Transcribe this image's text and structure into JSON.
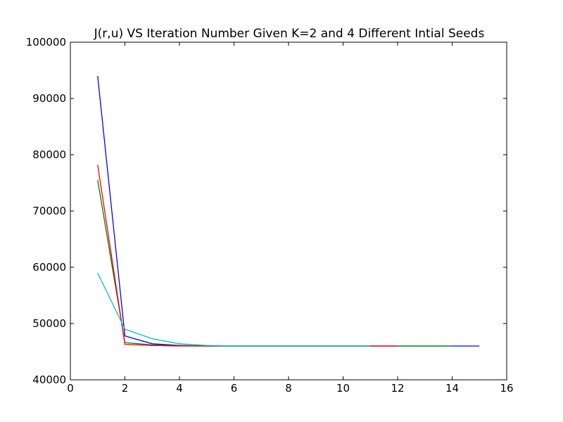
{
  "chart_data": {
    "type": "line",
    "title": "J(r,u) VS Iteration Number Given K=2 and 4 Different Intial Seeds",
    "xlabel": "",
    "ylabel": "",
    "xlim": [
      0,
      16
    ],
    "ylim": [
      40000,
      100000
    ],
    "xticks": [
      "0",
      "2",
      "4",
      "6",
      "8",
      "10",
      "12",
      "14",
      "16"
    ],
    "yticks": [
      "40000",
      "50000",
      "60000",
      "70000",
      "80000",
      "90000",
      "100000"
    ],
    "grid": false,
    "series": [
      {
        "color": "#0000ff",
        "x": [
          1,
          2,
          3,
          4,
          5,
          6,
          7,
          8,
          9,
          10,
          11,
          12,
          13,
          14,
          15
        ],
        "values": [
          94000,
          47800,
          46400,
          46100,
          46000,
          46000,
          46000,
          46000,
          46000,
          46000,
          46000,
          46000,
          46000,
          46000,
          46000
        ]
      },
      {
        "color": "#008000",
        "x": [
          1,
          2,
          3,
          4,
          5,
          6,
          7,
          8,
          9,
          10,
          11,
          12,
          13,
          14
        ],
        "values": [
          75500,
          46600,
          46200,
          46050,
          46000,
          46000,
          46000,
          46000,
          46000,
          46000,
          46000,
          46000,
          46000,
          46000
        ]
      },
      {
        "color": "#ff0000",
        "x": [
          1,
          2,
          3,
          4,
          5,
          6,
          7,
          8,
          9,
          10,
          11,
          12
        ],
        "values": [
          78200,
          46300,
          46100,
          46000,
          46000,
          46000,
          46000,
          46000,
          46000,
          46000,
          46000,
          46000
        ]
      },
      {
        "color": "#00bfbf",
        "x": [
          1,
          2,
          3,
          4,
          5,
          6,
          7,
          8,
          9,
          10,
          11
        ],
        "values": [
          59000,
          49000,
          47300,
          46400,
          46100,
          46000,
          46000,
          46000,
          46000,
          46000,
          46000
        ]
      }
    ]
  }
}
